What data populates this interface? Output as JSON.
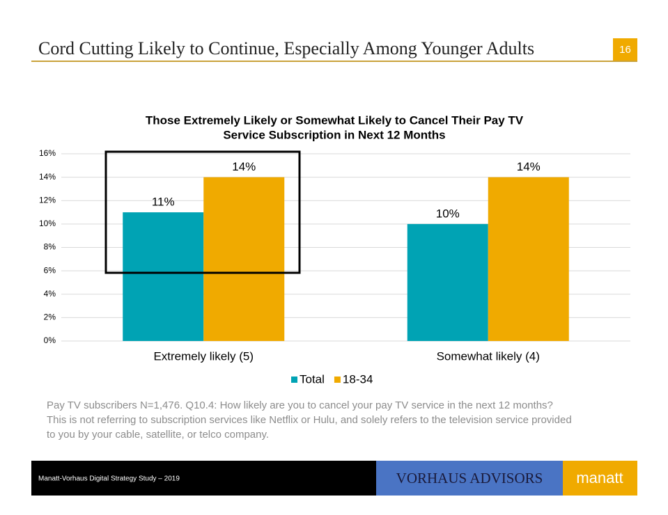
{
  "header": {
    "title": "Cord Cutting Likely to Continue, Especially Among Younger Adults",
    "page_number": "16"
  },
  "chart_data": {
    "type": "bar",
    "title": [
      "Those Extremely Likely or Somewhat Likely to Cancel Their Pay TV",
      "Service Subscription in Next 12 Months"
    ],
    "categories": [
      "Extremely likely (5)",
      "Somewhat likely (4)"
    ],
    "series": [
      {
        "name": "Total",
        "color": "#00a3b4",
        "values": [
          11,
          10
        ],
        "value_labels": [
          "11%",
          "10%"
        ]
      },
      {
        "name": "18-34",
        "color": "#f0aa00",
        "values": [
          14,
          14
        ],
        "value_labels": [
          "14%",
          "14%"
        ]
      }
    ],
    "ylim": [
      0,
      16
    ],
    "yticks": [
      {
        "value": 0,
        "label": "0%"
      },
      {
        "value": 2,
        "label": "2%"
      },
      {
        "value": 4,
        "label": "4%"
      },
      {
        "value": 6,
        "label": "6%"
      },
      {
        "value": 8,
        "label": "8%"
      },
      {
        "value": 10,
        "label": "10%"
      },
      {
        "value": 12,
        "label": "12%"
      },
      {
        "value": 14,
        "label": "14%"
      },
      {
        "value": 16,
        "label": "16%"
      }
    ],
    "grid": true,
    "legend": "bottom"
  },
  "footnote": [
    "Pay TV subscribers N=1,476. Q10.4: How likely are you to cancel your pay TV service in the next 12 months?",
    "This is not referring to subscription services like Netflix or Hulu, and solely refers to the television service provided",
    "to you by your cable, satellite, or telco company."
  ],
  "footer": {
    "study": "Manatt-Vorhaus Digital Strategy Study – 2019",
    "partner": "VORHAUS ADVISORS",
    "brand": "manatt"
  }
}
